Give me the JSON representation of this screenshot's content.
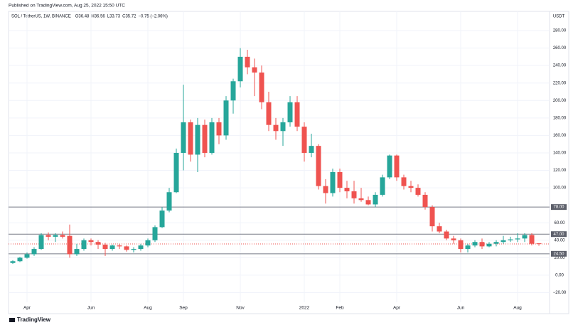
{
  "header": {
    "published": "Published on TradingView.com, Aug 25, 2022 15:50 UTC",
    "brand": "TradingView"
  },
  "chart_data": {
    "type": "candlestick",
    "currency": "USDT",
    "categories": [
      null,
      null,
      "Apr",
      null,
      null,
      null,
      null,
      null,
      null,
      null,
      null,
      "Jun",
      null,
      null,
      null,
      null,
      null,
      null,
      null,
      "Aug",
      null,
      null,
      null,
      null,
      "Sep",
      null,
      null,
      null,
      null,
      null,
      null,
      null,
      "Nov",
      null,
      null,
      null,
      null,
      null,
      null,
      null,
      null,
      "2022",
      null,
      null,
      null,
      null,
      "Feb",
      null,
      null,
      null,
      null,
      null,
      null,
      null,
      "Apr",
      null,
      null,
      null,
      null,
      null,
      null,
      null,
      null,
      "Jun",
      null,
      null,
      null,
      null,
      null,
      null,
      null,
      "Aug",
      null,
      null,
      null
    ],
    "series": [
      {
        "name": "SOL / TetherUS, 1W, BINANCE",
        "up_color": "#26a69a",
        "down_color": "#ef5350",
        "open": [
          14,
          16,
          20,
          24,
          30,
          46,
          44,
          46,
          45,
          24,
          30,
          40,
          38,
          35,
          30,
          34,
          33,
          29,
          30,
          34,
          40,
          55,
          74,
          95,
          140,
          175,
          138,
          172,
          140,
          175,
          160,
          200,
          222,
          250,
          238,
          232,
          198,
          172,
          165,
          175,
          198,
          170,
          140,
          148,
          102,
          94,
          118,
          100,
          96,
          88,
          86,
          81,
          92,
          112,
          137,
          112,
          102,
          100,
          92,
          78,
          56,
          50,
          42,
          40,
          30,
          34,
          38,
          33,
          36,
          38,
          40,
          41,
          42,
          46,
          36.48
        ],
        "high": [
          17,
          21,
          26,
          32,
          48,
          49,
          48,
          50,
          58,
          36,
          42,
          42,
          40,
          37,
          35,
          36,
          34,
          32,
          36,
          42,
          57,
          78,
          100,
          145,
          218,
          178,
          180,
          178,
          180,
          180,
          205,
          225,
          260,
          258,
          248,
          240,
          210,
          180,
          180,
          205,
          205,
          175,
          162,
          150,
          110,
          122,
          122,
          108,
          108,
          100,
          90,
          95,
          115,
          138,
          138,
          115,
          108,
          104,
          95,
          80,
          60,
          52,
          45,
          42,
          36,
          40,
          42,
          38,
          40,
          45,
          44,
          48,
          48,
          48,
          36.56
        ],
        "low": [
          13,
          15,
          19,
          22,
          29,
          40,
          38,
          42,
          20,
          22,
          28,
          34,
          30,
          22,
          28,
          30,
          27,
          26,
          28,
          32,
          38,
          54,
          72,
          94,
          120,
          130,
          118,
          135,
          138,
          150,
          155,
          185,
          215,
          230,
          205,
          190,
          165,
          155,
          148,
          170,
          165,
          130,
          135,
          98,
          82,
          90,
          95,
          88,
          82,
          84,
          80,
          78,
          90,
          110,
          108,
          98,
          95,
          90,
          75,
          50,
          48,
          40,
          36,
          26,
          26,
          32,
          30,
          32,
          33,
          36,
          38,
          38,
          38,
          34,
          33.73
        ],
        "close": [
          16,
          20,
          24,
          30,
          46,
          44,
          46,
          44,
          24,
          30,
          40,
          38,
          35,
          30,
          34,
          33,
          29,
          30,
          34,
          40,
          55,
          74,
          95,
          140,
          175,
          138,
          172,
          140,
          175,
          160,
          200,
          222,
          250,
          238,
          232,
          198,
          172,
          165,
          175,
          198,
          170,
          140,
          148,
          102,
          94,
          118,
          100,
          96,
          88,
          86,
          81,
          92,
          112,
          137,
          112,
          102,
          100,
          92,
          78,
          56,
          50,
          42,
          40,
          30,
          34,
          38,
          33,
          36,
          38,
          40,
          41,
          42,
          46,
          36,
          35.72
        ]
      }
    ],
    "ohlc_labels": [
      "O36.48",
      "H36.56",
      "L33.73",
      "C35.72",
      "−0.75 (−2.06%)"
    ],
    "levels": [
      {
        "value": 78,
        "label": "78.00"
      },
      {
        "value": 47,
        "label": "47.00"
      },
      {
        "value": 24.5,
        "label": "24.50"
      }
    ],
    "last_price": 35.72,
    "ylim": [
      -31,
      302
    ],
    "yticks": [
      {
        "value": 280,
        "label": "280.00"
      },
      {
        "value": 260,
        "label": "260.00"
      },
      {
        "value": 240,
        "label": "240.00"
      },
      {
        "value": 220,
        "label": "220.00"
      },
      {
        "value": 200,
        "label": "200.00"
      },
      {
        "value": 180,
        "label": "180.00"
      },
      {
        "value": 160,
        "label": "160.00"
      },
      {
        "value": 140,
        "label": "140.00"
      },
      {
        "value": 120,
        "label": "120.00"
      },
      {
        "value": 100,
        "label": "100.00"
      },
      {
        "value": 60,
        "label": "60.00"
      },
      {
        "value": 40,
        "label": "40.00"
      },
      {
        "value": 20,
        "label": "20.00"
      },
      {
        "value": 0,
        "label": "0.00"
      },
      {
        "value": -20,
        "label": "−20.00"
      }
    ],
    "grid": true
  }
}
